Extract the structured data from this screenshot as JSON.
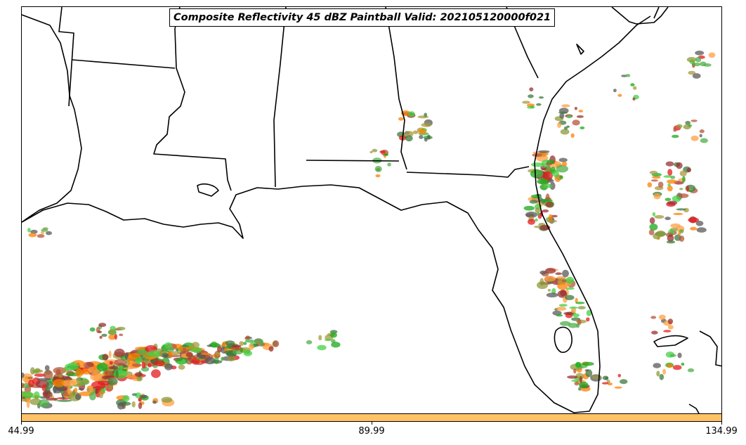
{
  "map": {
    "title": "Composite Reflectivity 45 dBZ Paintball Valid: 202105120000f021",
    "region": "Southeastern United States (Gulf Coast and Florida)",
    "features": [
      "coastlines",
      "state-borders"
    ],
    "colors": {
      "background": "#ffffff",
      "coastline": "#000000",
      "colorbar": "#ffc266"
    },
    "paintball_colors": [
      "#e41a1c",
      "#ff7f00",
      "#ffa040",
      "#4daf4a",
      "#1aaa1a",
      "#8c9a3a",
      "#a89a3c",
      "#b5553a",
      "#5a5a5a",
      "#3d7a3d",
      "#9a3030",
      "#44d044"
    ]
  },
  "colorbar": {
    "tick_labels": [
      "44.99",
      "89.99",
      "134.99"
    ]
  }
}
